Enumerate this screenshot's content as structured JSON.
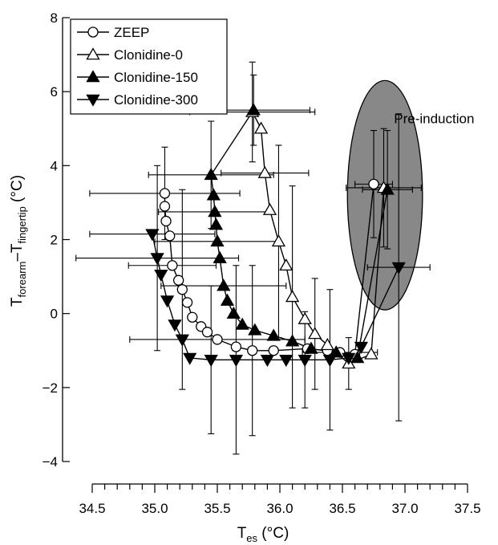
{
  "chart_data": {
    "type": "scatter",
    "title": "",
    "xlabel_main": "T",
    "xlabel_sub": "es",
    "xlabel_unit": " (°C)",
    "ylabel_main_a": "T",
    "ylabel_sub_a": "forearm",
    "ylabel_dash": "–T",
    "ylabel_sub_b": "fingertip",
    "ylabel_unit": " (°C)",
    "xlim": [
      34.5,
      37.5
    ],
    "ylim": [
      -4,
      8
    ],
    "x_ticks": [
      34.5,
      35.0,
      35.5,
      36.0,
      36.5,
      37.0,
      37.5
    ],
    "x_tick_labels": [
      "34.5",
      "35.0",
      "35.5",
      "36.0",
      "36.5",
      "37.0",
      "37.5"
    ],
    "y_ticks": [
      -4,
      -2,
      0,
      2,
      4,
      6,
      8
    ],
    "y_tick_labels": [
      "−4",
      "−2",
      "0",
      "2",
      "4",
      "6",
      "8"
    ],
    "grid": false,
    "legend_position": "top-left",
    "annotation": {
      "text": "Pre-induction",
      "ellipse_center": [
        36.84,
        3.2
      ],
      "ellipse_radius_x": 0.3,
      "ellipse_radius_y": 3.1,
      "color": "#888888"
    },
    "series": [
      {
        "name": "ZEEP",
        "marker": "circle-open",
        "pre_induction": {
          "x": 36.75,
          "y": 3.5,
          "xerr": 0.15,
          "yerr": 1.45
        },
        "points": [
          {
            "x": 35.08,
            "y": 3.25,
            "xerr": 0.6,
            "yerr": 1.25
          },
          {
            "x": 35.08,
            "y": 2.9
          },
          {
            "x": 35.09,
            "y": 2.5
          },
          {
            "x": 35.12,
            "y": 2.1
          },
          {
            "x": 35.14,
            "y": 1.3,
            "xerr": 0.35
          },
          {
            "x": 35.19,
            "y": 0.9
          },
          {
            "x": 35.22,
            "y": 0.65,
            "yerr": 2.7
          },
          {
            "x": 35.26,
            "y": 0.3
          },
          {
            "x": 35.3,
            "y": -0.1
          },
          {
            "x": 35.37,
            "y": -0.35
          },
          {
            "x": 35.42,
            "y": -0.5
          },
          {
            "x": 35.5,
            "y": -0.7,
            "xerr": 0.7
          },
          {
            "x": 35.65,
            "y": -0.9
          },
          {
            "x": 35.78,
            "y": -1.0,
            "yerr": 2.3
          },
          {
            "x": 35.95,
            "y": -1.0
          },
          {
            "x": 36.22,
            "y": -0.95
          },
          {
            "x": 36.38,
            "y": -1.0
          },
          {
            "x": 36.48,
            "y": -1.05,
            "xerr": 0.3
          },
          {
            "x": 36.6,
            "y": -1.1
          }
        ]
      },
      {
        "name": "Clonidine-0",
        "marker": "triangle-up-open",
        "pre_induction": {
          "x": 36.83,
          "y": 3.4,
          "xerr": 0.3,
          "yerr": 1.6
        },
        "points": [
          {
            "x": 35.78,
            "y": 5.45,
            "xerr": 0.5,
            "yerr": 1.35
          },
          {
            "x": 35.85,
            "y": 5.0
          },
          {
            "x": 35.88,
            "y": 3.8,
            "xerr": 0.35
          },
          {
            "x": 35.92,
            "y": 2.8
          },
          {
            "x": 35.99,
            "y": 1.95,
            "yerr": 2.6
          },
          {
            "x": 36.05,
            "y": 1.3
          },
          {
            "x": 36.1,
            "y": 0.45,
            "yerr": 3.0
          },
          {
            "x": 36.2,
            "y": -0.15
          },
          {
            "x": 36.28,
            "y": -0.55,
            "yerr": 1.5
          },
          {
            "x": 36.38,
            "y": -0.85
          },
          {
            "x": 36.55,
            "y": -1.35,
            "yerr": 0.7
          },
          {
            "x": 36.73,
            "y": -1.1
          }
        ]
      },
      {
        "name": "Clonidine-150",
        "marker": "triangle-up-filled",
        "pre_induction": {
          "x": 36.86,
          "y": 3.35,
          "xerr": 0.2,
          "yerr": 1.6
        },
        "points": [
          {
            "x": 35.79,
            "y": 5.5,
            "xerr": 0.45,
            "yerr": 0.95
          },
          {
            "x": 35.45,
            "y": 3.75,
            "xerr": 0.5,
            "yerr": 1.45
          },
          {
            "x": 35.47,
            "y": 3.2
          },
          {
            "x": 35.48,
            "y": 2.75,
            "xerr": 0.45
          },
          {
            "x": 35.49,
            "y": 2.4
          },
          {
            "x": 35.5,
            "y": 1.95,
            "xerr": 0.5
          },
          {
            "x": 35.52,
            "y": 1.5
          },
          {
            "x": 35.55,
            "y": 0.75,
            "xerr": 0.5
          },
          {
            "x": 35.58,
            "y": 0.35
          },
          {
            "x": 35.63,
            "y": 0.0
          },
          {
            "x": 35.7,
            "y": -0.3
          },
          {
            "x": 35.8,
            "y": -0.45
          },
          {
            "x": 35.95,
            "y": -0.6
          },
          {
            "x": 36.1,
            "y": -0.75
          },
          {
            "x": 36.25,
            "y": -0.95
          },
          {
            "x": 36.45,
            "y": -1.05
          },
          {
            "x": 36.62,
            "y": -1.2
          }
        ]
      },
      {
        "name": "Clonidine-300",
        "marker": "triangle-down-filled",
        "pre_induction": {
          "x": 36.95,
          "y": 1.25,
          "xerr": 0.25,
          "yerr": 4.15
        },
        "points": [
          {
            "x": 34.98,
            "y": 2.15,
            "xerr": 0.5
          },
          {
            "x": 35.02,
            "y": 1.5,
            "xerr": 0.65,
            "yerr": 2.5
          },
          {
            "x": 35.05,
            "y": 1.05
          },
          {
            "x": 35.1,
            "y": 0.35
          },
          {
            "x": 35.16,
            "y": -0.3
          },
          {
            "x": 35.22,
            "y": -0.7
          },
          {
            "x": 35.28,
            "y": -1.2
          },
          {
            "x": 35.45,
            "y": -1.25,
            "yerr": 2.0
          },
          {
            "x": 35.65,
            "y": -1.25,
            "yerr": 2.55
          },
          {
            "x": 35.9,
            "y": -1.25
          },
          {
            "x": 36.05,
            "y": -1.25
          },
          {
            "x": 36.2,
            "y": -1.25,
            "yerr": 1.3
          },
          {
            "x": 36.4,
            "y": -1.25,
            "yerr": 1.9
          },
          {
            "x": 36.55,
            "y": -1.2
          },
          {
            "x": 36.65,
            "y": -0.9
          }
        ]
      }
    ]
  }
}
